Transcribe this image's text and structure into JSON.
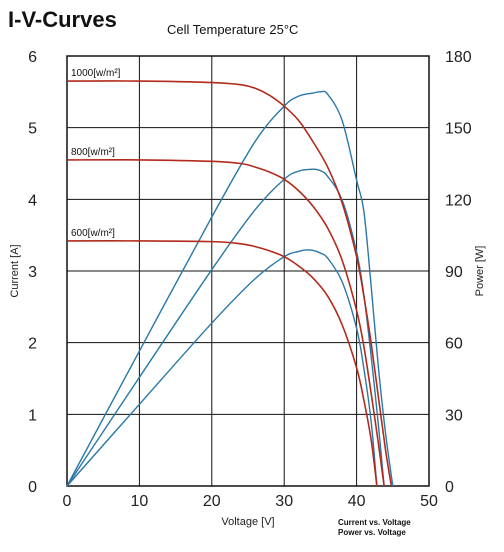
{
  "page": {
    "title": "I-V-Curves",
    "subtitle": "Cell Temperature   25°C"
  },
  "chart_data": {
    "type": "line",
    "xlabel": "Voltage [V]",
    "ylabel_left": "Current [A]",
    "ylabel_right": "Power [W]",
    "xlim": [
      0,
      50
    ],
    "ylim_left": [
      0,
      6
    ],
    "ylim_right": [
      0,
      180
    ],
    "x_ticks": [
      "0",
      "10",
      "20",
      "30",
      "40",
      "50"
    ],
    "y_left_ticks": [
      "0",
      "1",
      "2",
      "3",
      "4",
      "5",
      "6"
    ],
    "y_right_ticks": [
      "0",
      "30",
      "60",
      "90",
      "120",
      "150",
      "180"
    ],
    "grid": true,
    "legend": [
      "Current vs.  Voltage",
      "Power vs.  Voltage"
    ],
    "colors": {
      "current": "#b22a1c",
      "power": "#2a78a8"
    },
    "current_series": [
      {
        "name": "1000[w/m²]",
        "x": [
          0,
          10,
          20,
          24,
          26,
          28,
          30,
          32,
          34,
          36,
          38,
          40,
          41,
          42,
          43,
          44,
          44.8
        ],
        "y": [
          5.65,
          5.65,
          5.63,
          5.6,
          5.55,
          5.45,
          5.3,
          5.1,
          4.8,
          4.45,
          3.95,
          3.2,
          2.65,
          2.0,
          1.25,
          0.5,
          0
        ]
      },
      {
        "name": "800[w/m²]",
        "x": [
          0,
          10,
          20,
          24,
          26,
          28,
          30,
          32,
          34,
          36,
          38,
          40,
          41,
          42,
          43,
          43.8
        ],
        "y": [
          4.55,
          4.55,
          4.53,
          4.5,
          4.45,
          4.38,
          4.28,
          4.12,
          3.9,
          3.6,
          3.15,
          2.45,
          1.95,
          1.3,
          0.6,
          0
        ]
      },
      {
        "name": "600[w/m²]",
        "x": [
          0,
          10,
          20,
          24,
          26,
          28,
          30,
          32,
          34,
          36,
          38,
          40,
          41,
          42,
          42.8
        ],
        "y": [
          3.42,
          3.42,
          3.41,
          3.38,
          3.34,
          3.28,
          3.2,
          3.07,
          2.9,
          2.65,
          2.25,
          1.65,
          1.2,
          0.65,
          0
        ]
      }
    ],
    "power_series": [
      {
        "x": [
          0,
          10,
          20,
          26,
          30,
          32,
          34,
          35,
          36,
          38,
          40,
          41,
          42,
          43,
          44,
          45
        ],
        "y": [
          0,
          56.5,
          112.6,
          144.3,
          159,
          163.2,
          164.5,
          165,
          164,
          153,
          128,
          115,
          84,
          50,
          22,
          0
        ]
      },
      {
        "x": [
          0,
          10,
          20,
          26,
          30,
          32,
          34,
          35,
          36,
          38,
          40,
          41,
          42,
          43,
          43.8
        ],
        "y": [
          0,
          45.5,
          90.6,
          115.7,
          128.4,
          131.8,
          132.6,
          132,
          129.6,
          119.7,
          98,
          80,
          54.6,
          25.8,
          0
        ]
      },
      {
        "x": [
          0,
          10,
          20,
          26,
          30,
          32,
          33,
          34,
          35,
          36,
          38,
          40,
          41,
          42,
          42.8
        ],
        "y": [
          0,
          34.2,
          68.2,
          86.8,
          96,
          98.2,
          98.8,
          98.6,
          97.5,
          95.4,
          85.5,
          66,
          49.2,
          27.3,
          0
        ]
      }
    ]
  }
}
